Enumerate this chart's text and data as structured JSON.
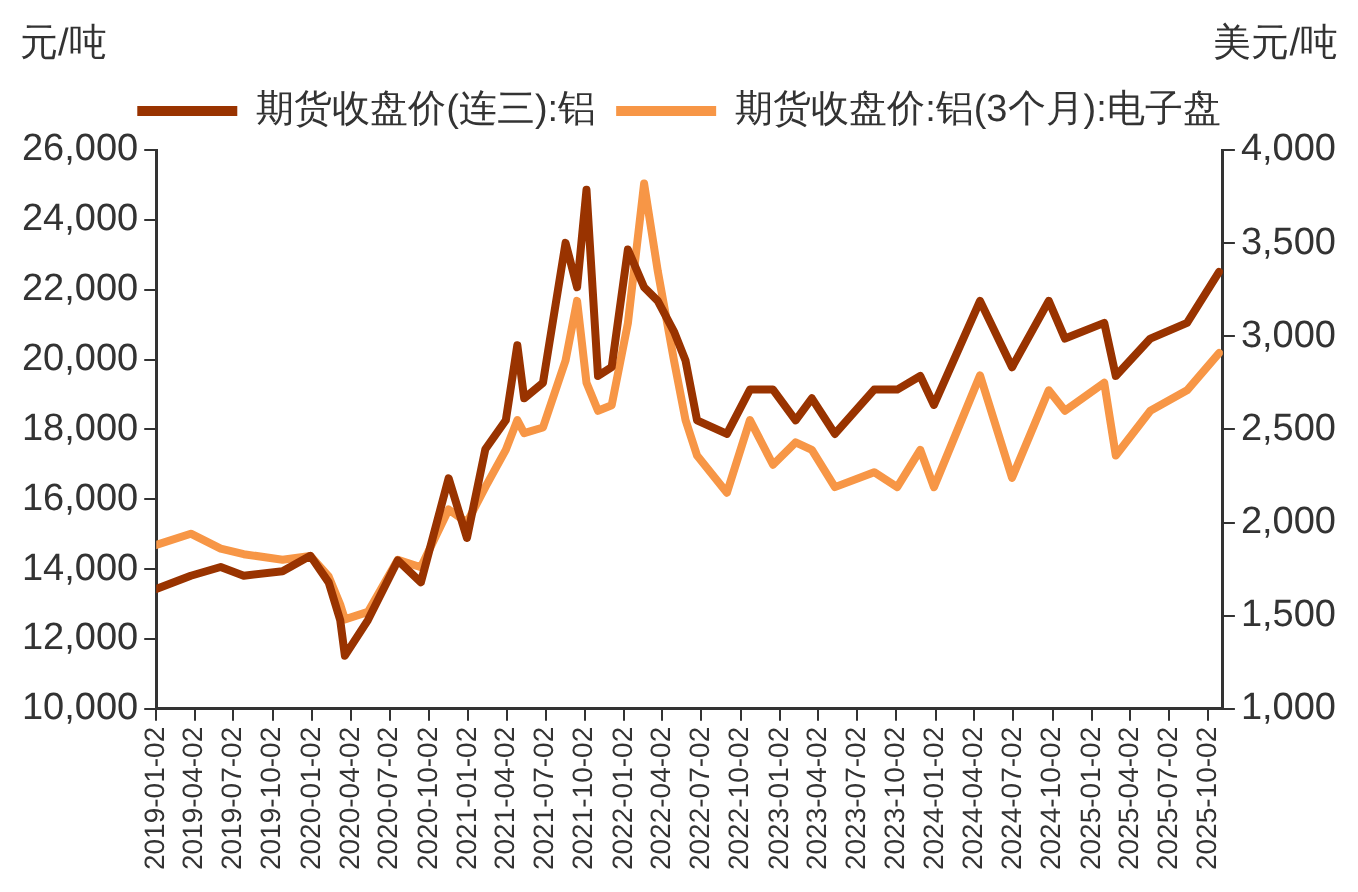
{
  "chart_data": {
    "type": "line",
    "ylabel": "元/吨",
    "y2label": "美元/吨",
    "x": [
      "2019-01-02",
      "2019-03-24",
      "2019-06-02",
      "2019-07-26",
      "2019-10-25",
      "2019-12-29",
      "2020-02-10",
      "2020-03-08",
      "2020-03-19",
      "2020-05-12",
      "2020-07-21",
      "2020-09-13",
      "2020-11-17",
      "2020-12-30",
      "2021-02-11",
      "2021-03-31",
      "2021-04-27",
      "2021-05-13",
      "2021-06-26",
      "2021-08-18",
      "2021-09-14",
      "2021-10-06",
      "2021-11-02",
      "2021-12-04",
      "2022-01-11",
      "2022-02-18",
      "2022-03-22",
      "2022-04-29",
      "2022-05-26",
      "2022-06-22",
      "2022-08-31",
      "2022-10-24",
      "2022-12-17",
      "2023-02-08",
      "2023-03-18",
      "2023-05-11",
      "2023-08-11",
      "2023-10-04",
      "2023-11-27",
      "2023-12-29",
      "2024-04-15",
      "2024-06-29",
      "2024-09-23",
      "2024-10-31",
      "2025-01-31",
      "2025-02-27",
      "2025-05-19",
      "2025-08-13",
      "2025-10-27"
    ],
    "series": [
      {
        "name": "期货收盘价(连三):铝",
        "color": "#993300",
        "values": [
          13430,
          13810,
          14060,
          13810,
          13940,
          14380,
          13620,
          12540,
          11520,
          12540,
          14250,
          13620,
          16600,
          14890,
          17430,
          18260,
          20410,
          18890,
          19330,
          23340,
          22070,
          24860,
          19530,
          19780,
          23150,
          22070,
          21680,
          20800,
          19970,
          18260,
          17870,
          19140,
          19140,
          18260,
          18890,
          17870,
          19140,
          19140,
          19530,
          18700,
          21680,
          19780,
          21680,
          20600,
          21050,
          19530,
          20600,
          21050,
          22510
        ]
      },
      {
        "name": "期货收盘价:铝(3个月):电子盘",
        "color": "#f79646",
        "axis": "y2",
        "values": [
          1880,
          1940,
          1860,
          1830,
          1800,
          1820,
          1710,
          1560,
          1480,
          1520,
          1800,
          1760,
          2070,
          2000,
          2190,
          2390,
          2550,
          2480,
          2510,
          2870,
          3190,
          2750,
          2600,
          2630,
          3070,
          3820,
          3350,
          2870,
          2550,
          2360,
          2160,
          2550,
          2310,
          2430,
          2390,
          2190,
          2270,
          2190,
          2390,
          2190,
          2790,
          2240,
          2710,
          2600,
          2750,
          2360,
          2600,
          2710,
          2910
        ]
      }
    ],
    "xlim": [
      "2019-01-02",
      "2025-11-05"
    ],
    "xticks": [
      "2019-01-02",
      "2019-04-02",
      "2019-07-02",
      "2019-10-02",
      "2020-01-02",
      "2020-04-02",
      "2020-07-02",
      "2020-10-02",
      "2021-01-02",
      "2021-04-02",
      "2021-07-02",
      "2021-10-02",
      "2022-01-02",
      "2022-04-02",
      "2022-07-02",
      "2022-10-02",
      "2023-01-02",
      "2023-04-02",
      "2023-07-02",
      "2023-10-02",
      "2024-01-02",
      "2024-04-02",
      "2024-07-02",
      "2024-10-02",
      "2025-01-02",
      "2025-04-02",
      "2025-07-02",
      "2025-10-02"
    ],
    "ylim": [
      10000,
      26000
    ],
    "yticks": [
      {
        "value": 10000,
        "label": "10,000"
      },
      {
        "value": 12000,
        "label": "12,000"
      },
      {
        "value": 14000,
        "label": "14,000"
      },
      {
        "value": 16000,
        "label": "16,000"
      },
      {
        "value": 18000,
        "label": "18,000"
      },
      {
        "value": 20000,
        "label": "20,000"
      },
      {
        "value": 22000,
        "label": "22,000"
      },
      {
        "value": 24000,
        "label": "24,000"
      },
      {
        "value": 26000,
        "label": "26,000"
      }
    ],
    "y2lim": [
      1000,
      4000
    ],
    "y2ticks": [
      {
        "value": 1000,
        "label": "1,000"
      },
      {
        "value": 1500,
        "label": "1,500"
      },
      {
        "value": 2000,
        "label": "2,000"
      },
      {
        "value": 2500,
        "label": "2,500"
      },
      {
        "value": 3000,
        "label": "3,000"
      },
      {
        "value": 3500,
        "label": "3,500"
      },
      {
        "value": 4000,
        "label": "4,000"
      }
    ],
    "grid": false,
    "legend": "top",
    "marker": "none",
    "line_style": "solid"
  }
}
